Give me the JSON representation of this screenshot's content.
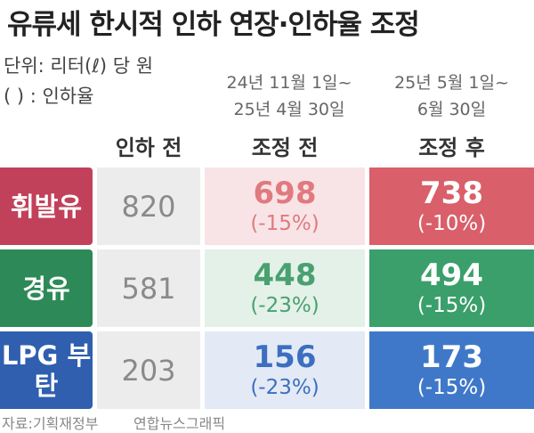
{
  "header": {
    "title": "유류세 한시적 인하 연장·인하율 조정",
    "unit": "단위: 리터(ℓ) 당 원",
    "note": "( ) : 인하율"
  },
  "periods": [
    [
      "24년 11월 1일~",
      "25년 4월 30일"
    ],
    [
      "25년 5월 1일~",
      "6월 30일"
    ]
  ],
  "columns": [
    "인하 전",
    "조정 전",
    "조정 후"
  ],
  "rows": [
    {
      "label": "휘발유",
      "before": 820,
      "pre": {
        "value": 698,
        "rate": "(-15%)"
      },
      "post": {
        "value": 738,
        "rate": "(-10%)"
      }
    },
    {
      "label": "경유",
      "before": 581,
      "pre": {
        "value": 448,
        "rate": "(-23%)"
      },
      "post": {
        "value": 494,
        "rate": "(-15%)"
      }
    },
    {
      "label": "LPG 부탄",
      "before": 203,
      "pre": {
        "value": 156,
        "rate": "(-23%)"
      },
      "post": {
        "value": 173,
        "rate": "(-15%)"
      }
    }
  ],
  "footer": {
    "source": "자료:기획재정부",
    "credit": "연합뉴스그래픽"
  }
}
